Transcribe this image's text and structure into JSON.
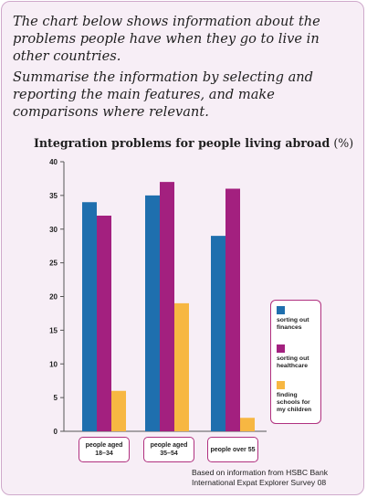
{
  "prompt": {
    "line1": "The chart below shows information about the problems people have when they go to live in other countries.",
    "line2": "Summarise the information by selecting and reporting the main features, and make comparisons where relevant."
  },
  "source": "Based on information from HSBC Bank International Expat Explorer Survey 08",
  "colors": {
    "finances": "#1f6fae",
    "healthcare": "#a3207f",
    "schools": "#f7b742",
    "frame": "#b0307f",
    "background": "#f7eef6"
  },
  "chart_data": {
    "type": "bar",
    "title": "Integration problems for people living abroad",
    "title_unit": "(%)",
    "xlabel": "",
    "ylabel": "",
    "categories": [
      "people aged 18–34",
      "people aged 35–54",
      "people over 55"
    ],
    "series": [
      {
        "name": "sorting out finances",
        "values": [
          34,
          35,
          29
        ]
      },
      {
        "name": "sorting out healthcare",
        "values": [
          32,
          37,
          36
        ]
      },
      {
        "name": "finding schools for my children",
        "values": [
          6,
          19,
          2
        ]
      }
    ],
    "ylim": [
      0,
      40
    ],
    "yticks": [
      "0",
      "5",
      "10",
      "15",
      "20",
      "25",
      "30",
      "35",
      "40"
    ],
    "grid": false,
    "legend_position": "right"
  }
}
